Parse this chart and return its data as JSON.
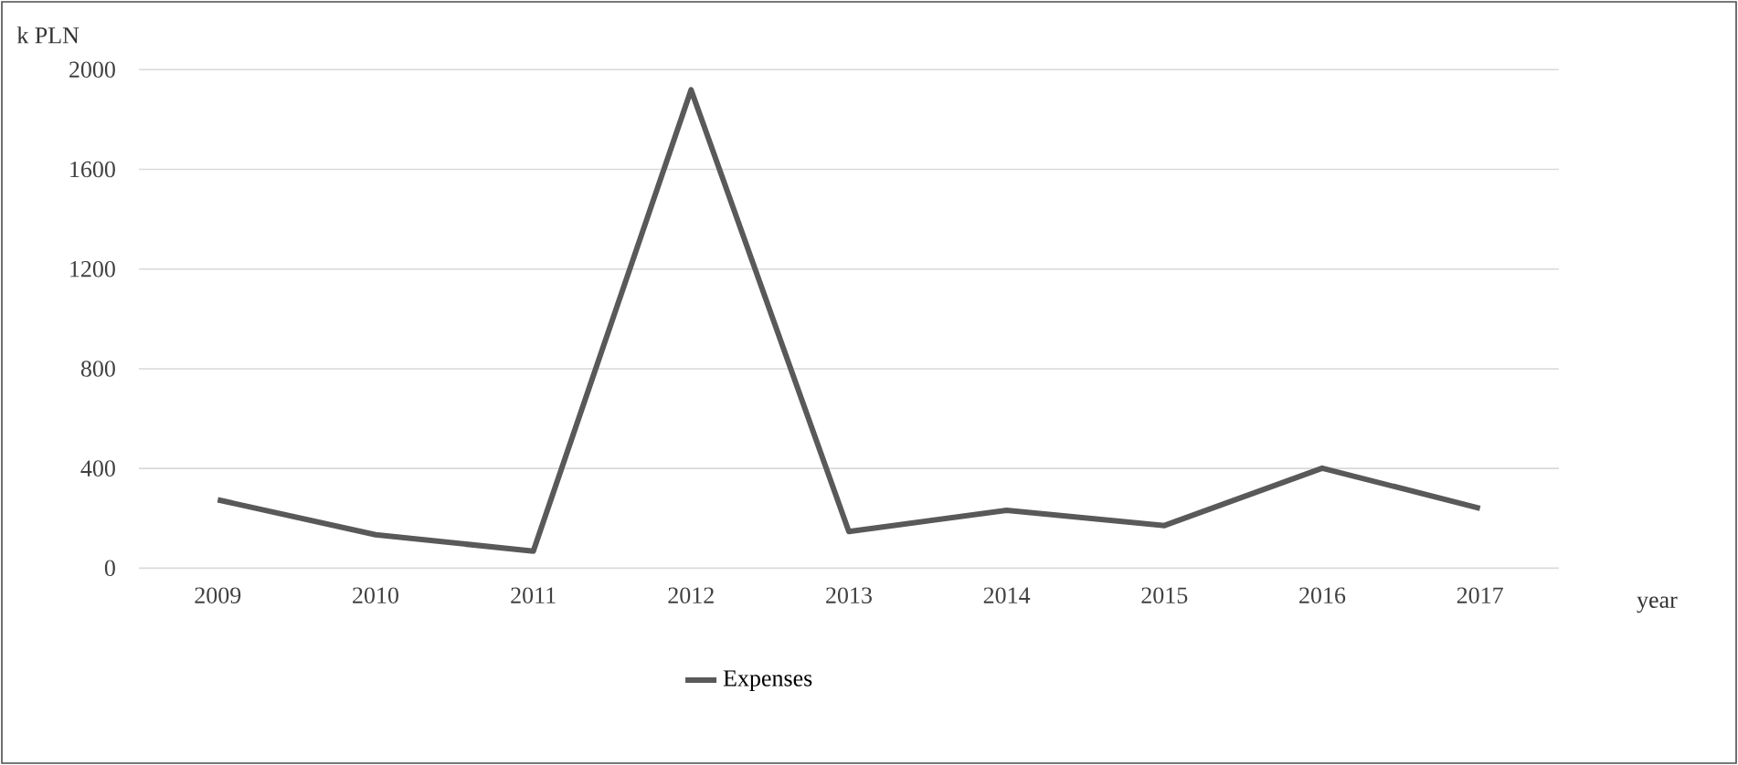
{
  "chart_data": {
    "type": "line",
    "ylabel": "k PLN",
    "xlabel": "year",
    "categories": [
      "2009",
      "2010",
      "2011",
      "2012",
      "2013",
      "2014",
      "2015",
      "2016",
      "2017"
    ],
    "series": [
      {
        "name": "Expenses",
        "color": "#595959",
        "values": [
          274,
          134,
          68,
          1919,
          147,
          232,
          171,
          401,
          240
        ]
      }
    ],
    "ylim": [
      0,
      2000
    ],
    "yticks": [
      0,
      400,
      800,
      1200,
      1600,
      2000
    ],
    "grid": "y",
    "legend": "bottom",
    "marker": "none",
    "line_style": "solid"
  }
}
